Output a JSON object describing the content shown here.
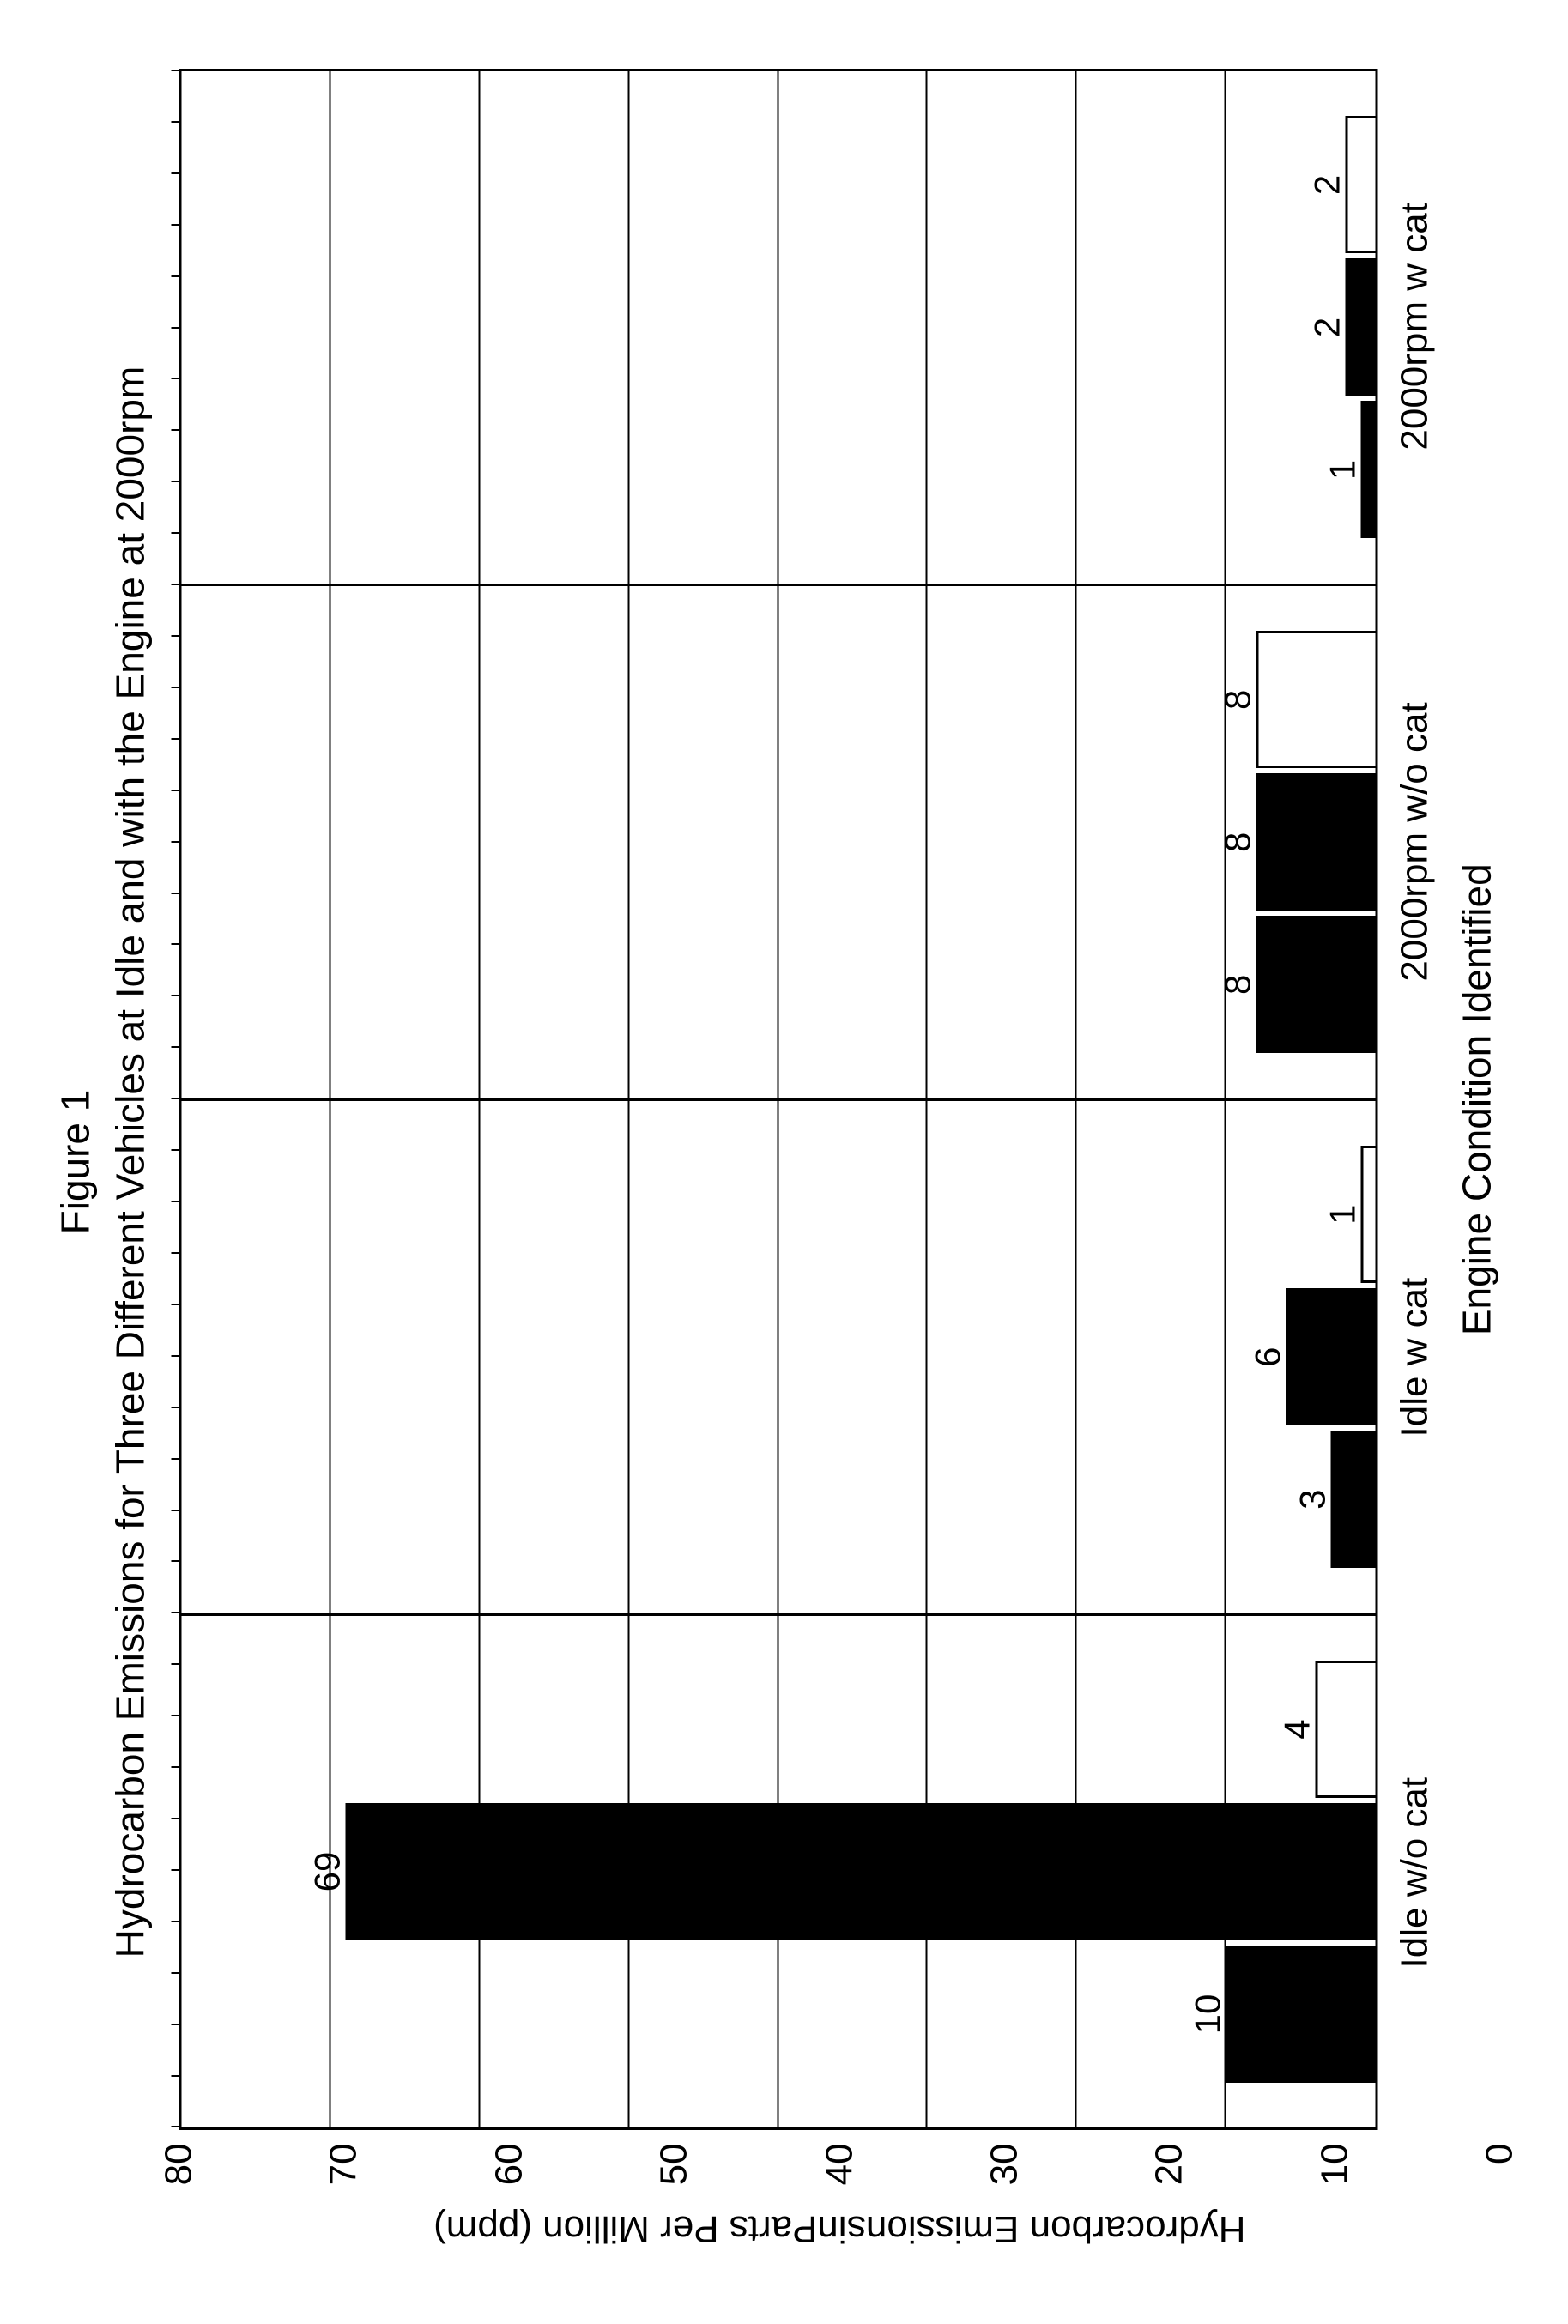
{
  "figure_label": "Figure 1",
  "title": "Hydrocarbon Emissions for Three Different Vehicles at Idle and with the Engine at 2000rpm",
  "y_axis_label": "Hydrocarbon Emissions\nin\nParts Per Million (ppm)",
  "x_axis_label": "Engine Condition Identified",
  "chart": {
    "type": "bar",
    "ylim": [
      0,
      80
    ],
    "ytick_step": 10,
    "yticks": [
      80,
      70,
      60,
      50,
      40,
      30,
      20,
      10,
      0
    ],
    "background_color": "#ffffff",
    "grid_color": "#000000",
    "border_color": "#000000",
    "bar_colors": [
      "#000000",
      "#000000",
      "#ffffff"
    ],
    "bar_border": "#000000",
    "label_fontsize": 44,
    "title_fontsize": 46,
    "groups": [
      {
        "category": "Idle w/o cat",
        "values": [
          10,
          69,
          4
        ],
        "labels": [
          "10",
          "69",
          "4"
        ]
      },
      {
        "category": "Idle w cat",
        "values": [
          3,
          6,
          1
        ],
        "labels": [
          "3",
          "6",
          "1"
        ]
      },
      {
        "category": "2000rpm w/o cat",
        "values": [
          8,
          8,
          8
        ],
        "labels": [
          "8",
          "8",
          "8"
        ]
      },
      {
        "category": "2000rpm w cat",
        "values": [
          1,
          2,
          2
        ],
        "labels": [
          "1",
          "2",
          "2"
        ]
      }
    ]
  }
}
